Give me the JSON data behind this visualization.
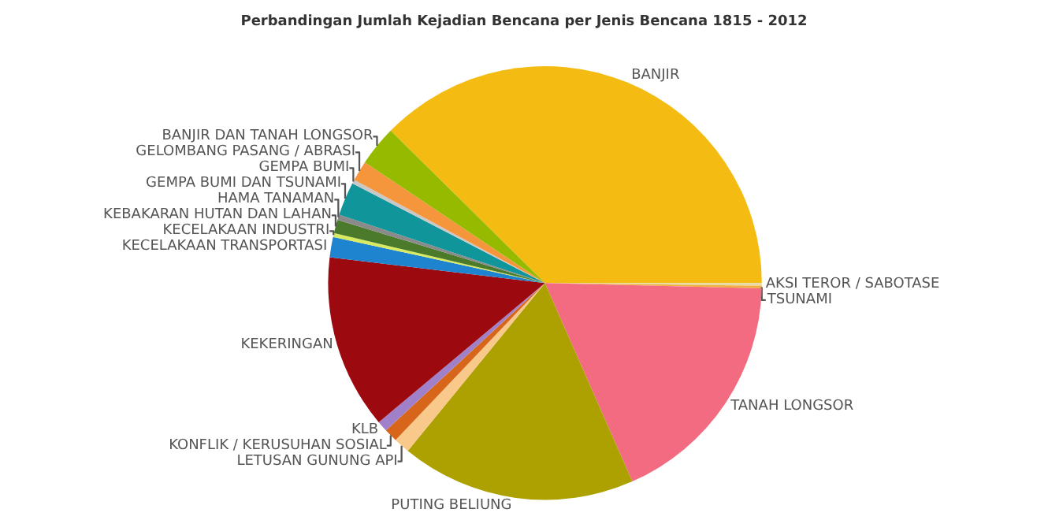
{
  "chart_data": {
    "type": "pie",
    "title": "Perbandingan Jumlah Kejadian Bencana per Jenis Bencana 1815 - 2012",
    "categories": [
      "BANJIR",
      "AKSI TEROR / SABOTASE",
      "TSUNAMI",
      "TANAH LONGSOR",
      "PUTING BELIUNG",
      "LETUSAN GUNUNG API",
      "KONFLIK / KERUSUHAN SOSIAL",
      "KLB",
      "KEKERINGAN",
      "KECELAKAAN TRANSPORTASI",
      "KECELAKAAN INDUSTRI",
      "KEBAKARAN HUTAN DAN LAHAN",
      "HAMA TANAMAN",
      "GEMPA BUMI DAN TSUNAMI",
      "GEMPA BUMI",
      "GELOMBANG PASANG / ABRASI",
      "BANJIR DAN TANAH LONGSOR"
    ],
    "values": [
      37.6,
      0.2,
      0.2,
      18,
      17.5,
      1.2,
      1,
      0.8,
      13,
      1.5,
      0.3,
      1,
      0.4,
      2.5,
      0.3,
      1.5,
      3
    ],
    "colors": [
      "#f4bc12",
      "#e8d8a8",
      "#f0b040",
      "#f26b80",
      "#aca100",
      "#f8c98a",
      "#d8661a",
      "#a080c8",
      "#9c0a10",
      "#1f84d0",
      "#d8ea60",
      "#4a7a2a",
      "#8a8a8a",
      "#10959a",
      "#c8c8c8",
      "#f5963c",
      "#96ba00"
    ],
    "legend": false
  }
}
